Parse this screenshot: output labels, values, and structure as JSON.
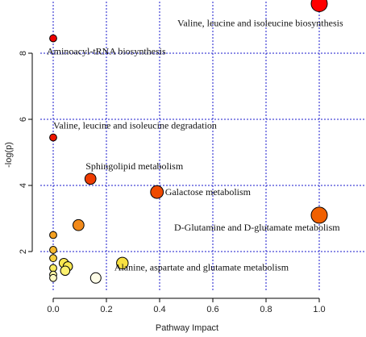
{
  "chart_data": {
    "type": "scatter",
    "title": "",
    "xlabel": "Pathway Impact",
    "ylabel": "-log(p)",
    "xlim": [
      0,
      1
    ],
    "ylim": [
      1.1,
      9.8
    ],
    "x_ticks": [
      "0.0",
      "0.2",
      "0.4",
      "0.6",
      "0.8",
      "1.0"
    ],
    "y_ticks": [
      "2",
      "4",
      "6",
      "8"
    ],
    "grid": true,
    "legend": "none",
    "points": [
      {
        "x": 1.0,
        "y": 9.5,
        "size": 1.0,
        "color": "#ff0000",
        "label": "Valine, leucine and isoleucine biosynthesis"
      },
      {
        "x": 0.0,
        "y": 8.45,
        "size": 0.2,
        "color": "#ee0000",
        "label": "Aminoacyl-tRNA biosynthesis"
      },
      {
        "x": 0.0,
        "y": 5.45,
        "size": 0.2,
        "color": "#ee1500",
        "label": "Valine, leucine and isoleucine degradation"
      },
      {
        "x": 0.14,
        "y": 4.2,
        "size": 0.55,
        "color": "#ee3c00",
        "label": "Sphingolipid metabolism"
      },
      {
        "x": 0.39,
        "y": 3.8,
        "size": 0.7,
        "color": "#ef4a00",
        "label": "Galactose metabolism"
      },
      {
        "x": 1.0,
        "y": 3.1,
        "size": 1.0,
        "color": "#f06000",
        "label": "D-Glutamine and D-glutamate metabolism"
      },
      {
        "x": 0.095,
        "y": 2.8,
        "size": 0.55,
        "color": "#f28a1a",
        "label": ""
      },
      {
        "x": 0.0,
        "y": 2.5,
        "size": 0.2,
        "color": "#f4a020",
        "label": ""
      },
      {
        "x": 0.0,
        "y": 2.05,
        "size": 0.2,
        "color": "#f6b830",
        "label": ""
      },
      {
        "x": 0.26,
        "y": 1.65,
        "size": 0.6,
        "color": "#f8e040",
        "label": "Alanine, aspartate and glutamate metabolism"
      },
      {
        "x": 0.0,
        "y": 1.8,
        "size": 0.2,
        "color": "#f8d040",
        "label": ""
      },
      {
        "x": 0.04,
        "y": 1.65,
        "size": 0.4,
        "color": "#fae850",
        "label": ""
      },
      {
        "x": 0.055,
        "y": 1.55,
        "size": 0.4,
        "color": "#fae850",
        "label": ""
      },
      {
        "x": 0.0,
        "y": 1.5,
        "size": 0.2,
        "color": "#faec60",
        "label": ""
      },
      {
        "x": 0.045,
        "y": 1.42,
        "size": 0.4,
        "color": "#fbf070",
        "label": ""
      },
      {
        "x": 0.0,
        "y": 1.3,
        "size": 0.2,
        "color": "#fcf4a0",
        "label": ""
      },
      {
        "x": 0.0,
        "y": 1.2,
        "size": 0.2,
        "color": "#fdf8c0",
        "label": ""
      },
      {
        "x": 0.16,
        "y": 1.2,
        "size": 0.5,
        "color": "#fffde8",
        "label": ""
      }
    ]
  }
}
